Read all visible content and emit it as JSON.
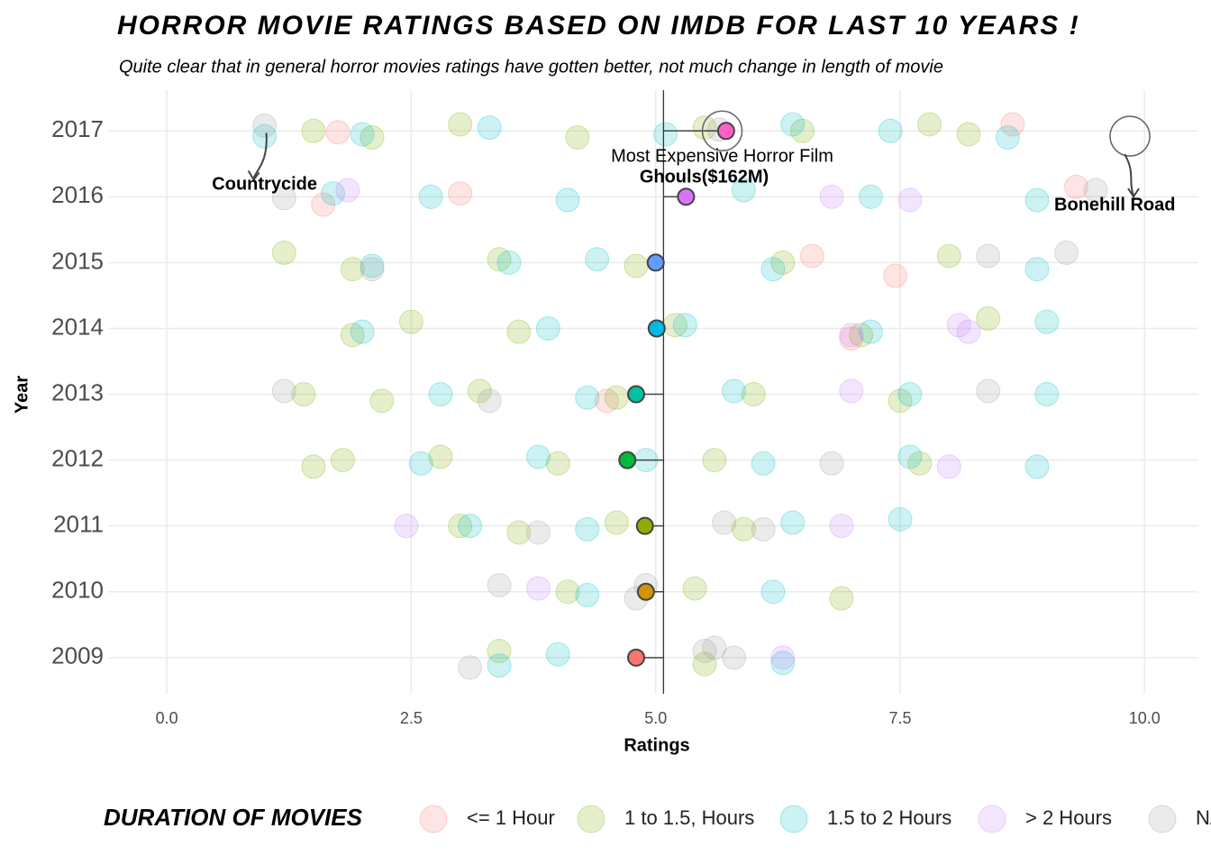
{
  "chart_data": {
    "type": "scatter",
    "title": "Horror Movie Ratings Based on IMDB for last 10 years !",
    "subtitle": "Quite clear that in general horror movies ratings have gotten better, not much change in length of movie",
    "x_label": "Ratings",
    "y_label": "Year",
    "xlim": [
      -0.6,
      10.55
    ],
    "xticks": [
      {
        "value": 0,
        "label": "0.0"
      },
      2.5,
      {
        "value": 5,
        "label": "5.0"
      },
      7.5,
      {
        "value": 10,
        "label": "10.0"
      }
    ],
    "ylim": [
      2008.45,
      2017.62
    ],
    "yticks": [
      2009,
      2010,
      2011,
      2012,
      2013,
      2014,
      2015,
      2016,
      2017
    ],
    "grid": true,
    "overall_mean": 5.08,
    "legend_title": "Duration of Movies",
    "legend_position": "bottom",
    "series": [
      {
        "name": "<= 1 Hour",
        "color": "#f8766d",
        "x": [
          1.6,
          1.75,
          8.65,
          9.3,
          7.45,
          6.6,
          4.5,
          3.0,
          7.0
        ],
        "y": [
          2015.88,
          2016.98,
          2017.1,
          2016.15,
          2014.8,
          2015.1,
          2012.9,
          2016.05,
          2013.85
        ]
      },
      {
        "name": "1 to 1.5, Hours",
        "color": "#7cae00",
        "x": [
          1.5,
          2.1,
          3.0,
          4.2,
          5.5,
          6.5,
          7.8,
          8.2,
          1.2,
          1.9,
          3.4,
          4.8,
          6.3,
          8.0,
          1.9,
          2.5,
          3.6,
          5.2,
          7.1,
          8.4,
          1.4,
          2.2,
          3.2,
          4.6,
          6.0,
          7.5,
          1.5,
          1.8,
          2.8,
          4.0,
          5.6,
          7.7,
          3.0,
          3.6,
          4.6,
          5.9,
          4.1,
          5.4,
          6.9,
          3.4,
          5.5
        ],
        "y": [
          2017.0,
          2016.9,
          2017.1,
          2016.9,
          2017.05,
          2017.0,
          2017.1,
          2016.95,
          2015.15,
          2014.9,
          2015.05,
          2014.95,
          2015.0,
          2015.1,
          2013.9,
          2014.1,
          2013.95,
          2014.05,
          2013.9,
          2014.15,
          2013.0,
          2012.9,
          2013.05,
          2012.95,
          2013.0,
          2012.9,
          2011.9,
          2012.0,
          2012.05,
          2011.95,
          2012.0,
          2011.95,
          2011.0,
          2010.9,
          2011.05,
          2010.95,
          2010.0,
          2010.05,
          2009.9,
          2009.1,
          2008.9
        ]
      },
      {
        "name": "1.5 to 2 Hours",
        "color": "#00bfc4",
        "x": [
          1.0,
          2.0,
          3.3,
          5.1,
          6.4,
          7.4,
          8.6,
          1.7,
          2.7,
          4.1,
          5.9,
          7.2,
          8.9,
          2.1,
          3.5,
          4.4,
          6.2,
          8.9,
          2.0,
          3.9,
          5.3,
          7.2,
          9.0,
          2.8,
          4.3,
          5.8,
          7.6,
          9.0,
          2.6,
          3.8,
          4.9,
          6.1,
          7.6,
          8.9,
          3.1,
          4.3,
          6.4,
          7.5,
          4.3,
          6.2,
          4.0,
          3.4,
          6.3
        ],
        "y": [
          2016.92,
          2016.95,
          2017.05,
          2016.95,
          2017.1,
          2017.0,
          2016.9,
          2016.05,
          2016.0,
          2015.95,
          2016.1,
          2016.0,
          2015.95,
          2014.95,
          2015.0,
          2015.05,
          2014.9,
          2014.9,
          2013.95,
          2014.0,
          2014.05,
          2013.95,
          2014.1,
          2013.0,
          2012.95,
          2013.05,
          2013.0,
          2013.0,
          2011.95,
          2012.05,
          2012.0,
          2011.95,
          2012.05,
          2011.9,
          2011.0,
          2010.95,
          2011.05,
          2011.1,
          2009.95,
          2010.0,
          2009.05,
          2008.88,
          2008.92
        ]
      },
      {
        "name": "> 2 Hours",
        "color": "#c77cff",
        "x": [
          1.85,
          6.8,
          7.6,
          8.1,
          7.0,
          8.2,
          7.0,
          8.0,
          2.45,
          6.9,
          3.8,
          6.3
        ],
        "y": [
          2016.1,
          2016.0,
          2015.95,
          2014.05,
          2013.9,
          2013.95,
          2013.05,
          2011.9,
          2011.0,
          2011.0,
          2010.05,
          2009.0
        ]
      },
      {
        "name": "NA",
        "color": "#999999",
        "x": [
          1.0,
          1.2,
          5.65,
          9.5,
          8.4,
          9.2,
          2.1,
          1.2,
          3.3,
          8.4,
          6.8,
          5.7,
          3.8,
          6.1,
          3.4,
          4.8,
          4.9,
          5.6,
          3.1,
          5.5,
          5.8
        ],
        "y": [
          2017.08,
          2015.98,
          2017.02,
          2016.1,
          2015.1,
          2015.15,
          2014.9,
          2013.05,
          2012.9,
          2013.05,
          2011.95,
          2011.05,
          2010.9,
          2010.95,
          2010.1,
          2009.9,
          2010.1,
          2009.15,
          2008.85,
          2009.1,
          2009.0
        ]
      }
    ],
    "means": {
      "years": [
        2009,
        2010,
        2011,
        2012,
        2013,
        2014,
        2015,
        2016,
        2017
      ],
      "values": [
        4.8,
        4.9,
        4.89,
        4.71,
        4.8,
        5.01,
        5.0,
        5.31,
        5.72
      ],
      "colors": [
        "#f8766d",
        "#d39200",
        "#93aa00",
        "#00ba38",
        "#00c19f",
        "#00b9e3",
        "#619cff",
        "#db72fb",
        "#ff61c3"
      ]
    },
    "highlights": [
      {
        "label": "Countrycide",
        "x": 1.0,
        "y": 2017.08
      },
      {
        "label": "Bonehill Road",
        "x": 9.85,
        "y": 2016.92
      },
      {
        "note": "Most Expensive Horror Film",
        "label": "Ghouls($162M)",
        "x": 5.68,
        "y": 2017.0
      }
    ]
  }
}
